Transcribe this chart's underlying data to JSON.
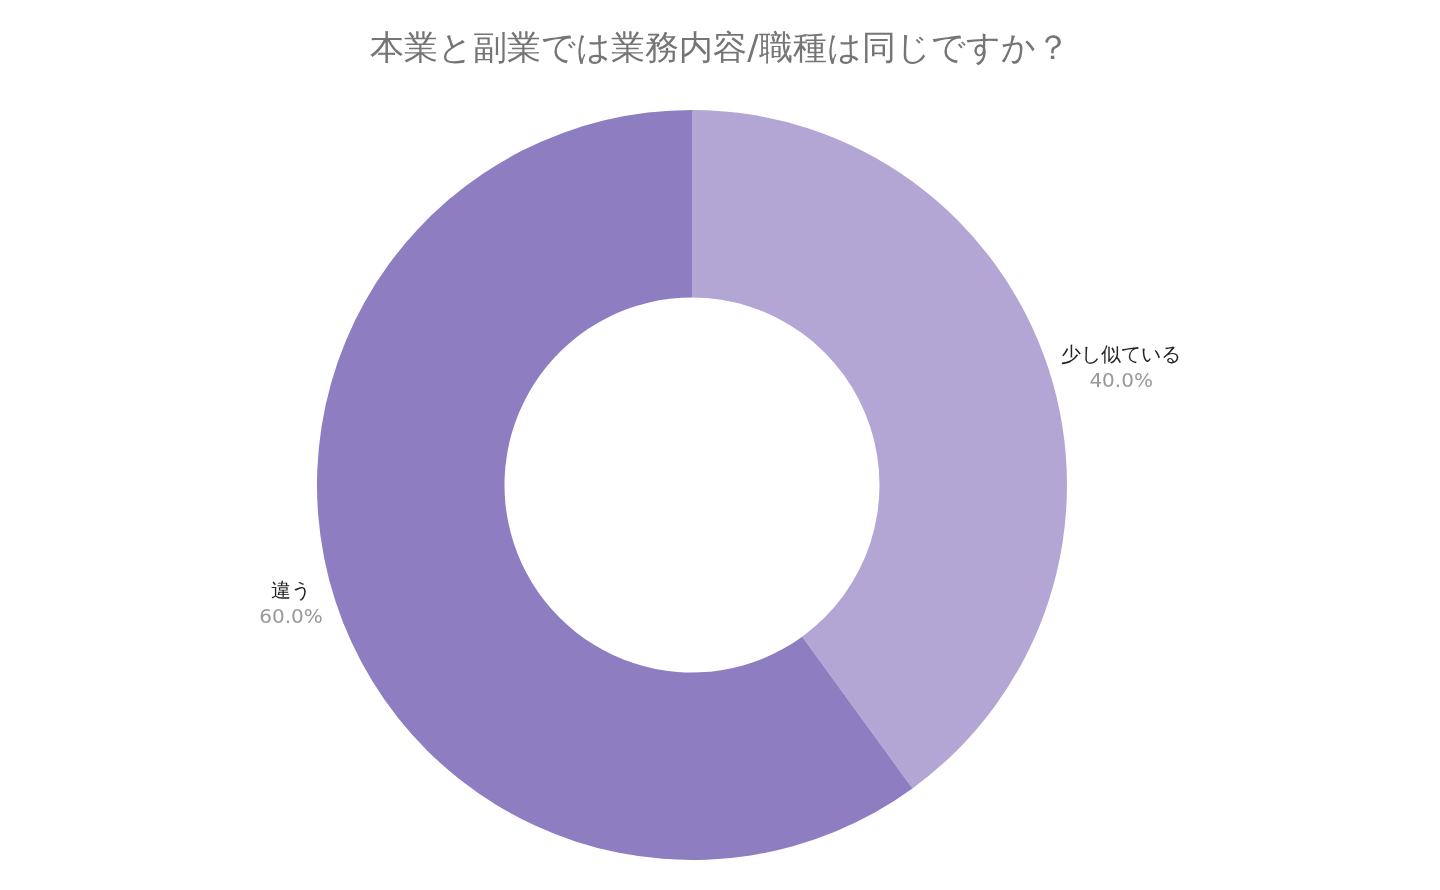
{
  "chart_data": {
    "type": "donut",
    "title": "本業と副業では業務内容/職種は同じですか？",
    "categories": [
      "少し似ている",
      "違う"
    ],
    "values": [
      40,
      60
    ],
    "value_labels": [
      "40.0%",
      "60.0%"
    ],
    "colors": [
      "#b3a6d5",
      "#8e7dc1"
    ],
    "legend": false
  }
}
